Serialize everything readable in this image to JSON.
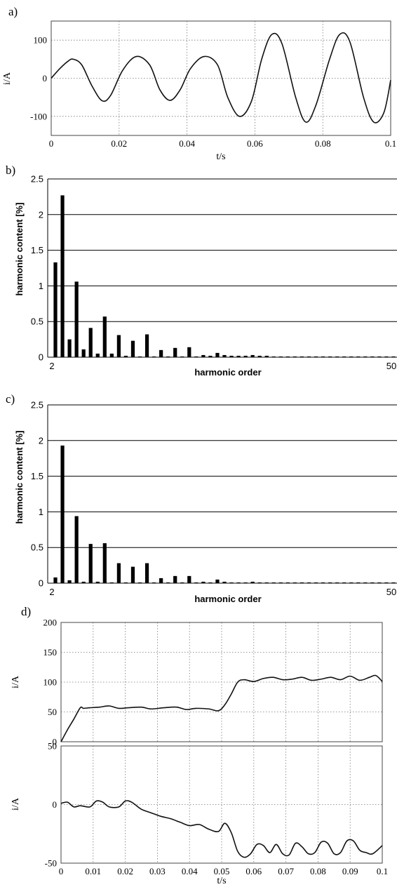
{
  "panels": [
    {
      "id": "a",
      "label": "a)",
      "chart_data": {
        "type": "line",
        "xlabel": "t/s",
        "ylabel": "i/A",
        "xlim": [
          0,
          0.1
        ],
        "ylim": [
          -150,
          150
        ],
        "xticks": [
          "0",
          "0.02",
          "0.04",
          "0.06",
          "0.08",
          "0.1"
        ],
        "yticks": [
          "-100",
          "0",
          "100"
        ],
        "grid": "dotted",
        "series": [
          {
            "x": [
              0,
              0.0025,
              0.005,
              0.0065,
              0.009,
              0.012,
              0.015,
              0.0175,
              0.021,
              0.025,
              0.029,
              0.032,
              0.035,
              0.038,
              0.041,
              0.045,
              0.049,
              0.052,
              0.0555,
              0.059,
              0.062,
              0.065,
              0.068,
              0.072,
              0.075,
              0.078,
              0.082,
              0.085,
              0.088,
              0.092,
              0.095,
              0.098,
              0.1
            ],
            "y": [
              0,
              25,
              45,
              50,
              35,
              -20,
              -59,
              -45,
              20,
              57,
              35,
              -30,
              -58,
              -30,
              25,
              57,
              35,
              -50,
              -100,
              -60,
              50,
              115,
              90,
              -50,
              -115,
              -70,
              50,
              115,
              95,
              -50,
              -115,
              -90,
              -5
            ]
          }
        ]
      }
    },
    {
      "id": "b",
      "label": "b)",
      "chart_data": {
        "type": "bar",
        "xlabel": "harmonic order",
        "ylabel": "harmonic content [%]",
        "ylim": [
          0,
          2.5
        ],
        "yticks": [
          "0",
          "0.5",
          "1",
          "1.5",
          "2",
          "2.5"
        ],
        "xtick_labels": [
          "2",
          "50"
        ],
        "categories": [
          2,
          3,
          4,
          5,
          6,
          7,
          8,
          9,
          10,
          11,
          12,
          13,
          14,
          15,
          16,
          17,
          18,
          19,
          20,
          21,
          22,
          23,
          24,
          25,
          26,
          27,
          28,
          29,
          30,
          31,
          32,
          33,
          34,
          35,
          36,
          37,
          38,
          39,
          40,
          41,
          42,
          43,
          44,
          45,
          46,
          47,
          48,
          49,
          50
        ],
        "values": [
          1.33,
          2.27,
          0.25,
          1.06,
          0.11,
          0.41,
          0.05,
          0.57,
          0.05,
          0.31,
          0.02,
          0.23,
          0.01,
          0.32,
          0.01,
          0.1,
          0.01,
          0.13,
          0.01,
          0.14,
          0.01,
          0.03,
          0.02,
          0.06,
          0.03,
          0.02,
          0.02,
          0.02,
          0.03,
          0.02,
          0.02,
          0.01,
          0.01,
          0.01,
          0.01,
          0.01,
          0.01,
          0.01,
          0.01,
          0.01,
          0.01,
          0.01,
          0.01,
          0.01,
          0.01,
          0.01,
          0.01,
          0.01,
          0.01
        ]
      }
    },
    {
      "id": "c",
      "label": "c)",
      "chart_data": {
        "type": "bar",
        "xlabel": "harmonic order",
        "ylabel": "harmonic content [%]",
        "ylim": [
          0,
          2.5
        ],
        "yticks": [
          "0",
          "0.5",
          "1",
          "1.5",
          "2",
          "2.5"
        ],
        "xtick_labels": [
          "2",
          "50"
        ],
        "categories": [
          2,
          3,
          4,
          5,
          6,
          7,
          8,
          9,
          10,
          11,
          12,
          13,
          14,
          15,
          16,
          17,
          18,
          19,
          20,
          21,
          22,
          23,
          24,
          25,
          26,
          27,
          28,
          29,
          30,
          31,
          32,
          33,
          34,
          35,
          36,
          37,
          38,
          39,
          40,
          41,
          42,
          43,
          44,
          45,
          46,
          47,
          48,
          49,
          50
        ],
        "values": [
          0.08,
          1.93,
          0.04,
          0.94,
          0.02,
          0.55,
          0.02,
          0.56,
          0.01,
          0.28,
          0.01,
          0.23,
          0.01,
          0.28,
          0.01,
          0.07,
          0.01,
          0.1,
          0.01,
          0.1,
          0.01,
          0.02,
          0.01,
          0.05,
          0.02,
          0.01,
          0.01,
          0.01,
          0.02,
          0.01,
          0.01,
          0.01,
          0.01,
          0.01,
          0.01,
          0.01,
          0.01,
          0.01,
          0.01,
          0.01,
          0.01,
          0.01,
          0.01,
          0.01,
          0.01,
          0.01,
          0.01,
          0.01,
          0.01
        ]
      }
    },
    {
      "id": "d1",
      "label": "d)",
      "chart_data": {
        "type": "line",
        "xlabel": "",
        "ylabel": "i/A",
        "xlim": [
          0,
          0.1
        ],
        "ylim": [
          0,
          200
        ],
        "yticks": [
          "0",
          "50",
          "100",
          "150",
          "200"
        ],
        "grid": "dotted",
        "series": [
          {
            "x": [
              0,
              0.002,
              0.004,
              0.006,
              0.007,
              0.009,
              0.012,
              0.015,
              0.018,
              0.021,
              0.025,
              0.028,
              0.032,
              0.036,
              0.039,
              0.042,
              0.046,
              0.049,
              0.051,
              0.053,
              0.055,
              0.057,
              0.06,
              0.063,
              0.066,
              0.069,
              0.072,
              0.075,
              0.078,
              0.081,
              0.084,
              0.087,
              0.09,
              0.093,
              0.096,
              0.098,
              0.1
            ],
            "y": [
              0,
              20,
              38,
              57,
              56,
              57,
              58,
              60,
              56,
              57,
              58,
              55,
              57,
              58,
              54,
              56,
              55,
              52,
              62,
              80,
              100,
              104,
              101,
              106,
              108,
              104,
              105,
              108,
              103,
              105,
              108,
              104,
              110,
              103,
              108,
              111,
              101
            ]
          }
        ]
      }
    },
    {
      "id": "d2",
      "label": "",
      "chart_data": {
        "type": "line",
        "xlabel": "t/s",
        "ylabel": "i/A",
        "xlim": [
          0,
          0.1
        ],
        "ylim": [
          -50,
          50
        ],
        "xticks": [
          "0",
          "0.01",
          "0.02",
          "0.03",
          "0.04",
          "0.05",
          "0.06",
          "0.07",
          "0.08",
          "0.09",
          "0.1"
        ],
        "yticks": [
          "-50",
          "0",
          "50"
        ],
        "grid": "dotted",
        "series": [
          {
            "x": [
              0,
              0.002,
              0.004,
              0.006,
              0.009,
              0.011,
              0.013,
              0.015,
              0.018,
              0.02,
              0.022,
              0.025,
              0.028,
              0.031,
              0.034,
              0.037,
              0.04,
              0.043,
              0.046,
              0.049,
              0.051,
              0.053,
              0.055,
              0.057,
              0.059,
              0.061,
              0.063,
              0.065,
              0.067,
              0.069,
              0.071,
              0.073,
              0.075,
              0.077,
              0.079,
              0.081,
              0.083,
              0.085,
              0.087,
              0.089,
              0.091,
              0.093,
              0.095,
              0.097,
              0.1
            ],
            "y": [
              1,
              2,
              -2,
              -1,
              -2,
              3,
              2,
              -2,
              -2,
              3,
              2,
              -4,
              -7,
              -10,
              -12,
              -15,
              -18,
              -17,
              -21,
              -23,
              -16,
              -24,
              -40,
              -45,
              -42,
              -34,
              -35,
              -41,
              -34,
              -42,
              -43,
              -33,
              -36,
              -42,
              -41,
              -32,
              -33,
              -42,
              -41,
              -31,
              -31,
              -39,
              -41,
              -42,
              -35
            ]
          }
        ]
      }
    }
  ]
}
